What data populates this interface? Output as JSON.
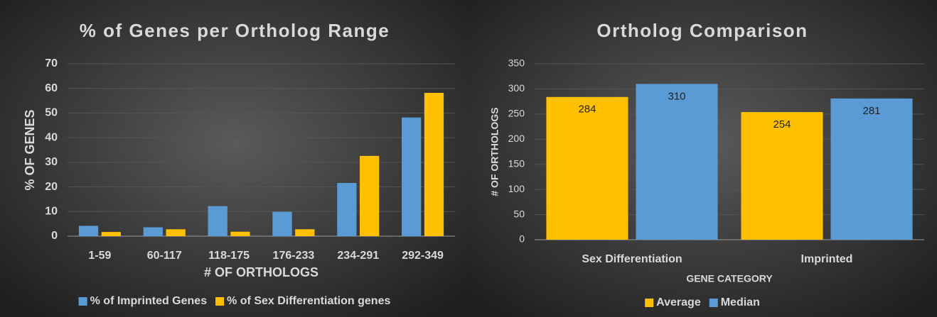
{
  "chart_data": [
    {
      "type": "bar",
      "title": "% of Genes per Ortholog Range",
      "x_label": "# OF ORTHOLOGS",
      "y_label": "% OF GENES",
      "categories": [
        "1-59",
        "60-117",
        "118-175",
        "176-233",
        "234-291",
        "292-349"
      ],
      "series": [
        {
          "name": "% of Imprinted Genes",
          "color": "#5b9bd5",
          "values": [
            4.2,
            3.6,
            12.2,
            9.9,
            21.6,
            48.2
          ]
        },
        {
          "name": "% of Sex Differentiation genes",
          "color": "#ffc000",
          "values": [
            1.7,
            2.8,
            1.8,
            2.8,
            32.6,
            58.2
          ]
        }
      ],
      "ylim": [
        0,
        70
      ],
      "yticks": [
        0,
        10,
        20,
        30,
        40,
        50,
        60,
        70
      ],
      "grid": true,
      "legend": "bottom",
      "data_labels": false
    },
    {
      "type": "bar",
      "title": "Ortholog Comparison",
      "x_label": "GENE CATEGORY",
      "y_label": "# OF ORTHOLOGS",
      "categories": [
        "Sex Differentiation",
        "Imprinted"
      ],
      "series": [
        {
          "name": "Average",
          "color": "#ffc000",
          "values": [
            284,
            254
          ]
        },
        {
          "name": "Median",
          "color": "#5b9bd5",
          "values": [
            310,
            281
          ]
        }
      ],
      "ylim": [
        0,
        350
      ],
      "yticks": [
        0,
        50,
        100,
        150,
        200,
        250,
        300,
        350
      ],
      "grid": true,
      "legend": "bottom",
      "data_labels": true
    }
  ]
}
